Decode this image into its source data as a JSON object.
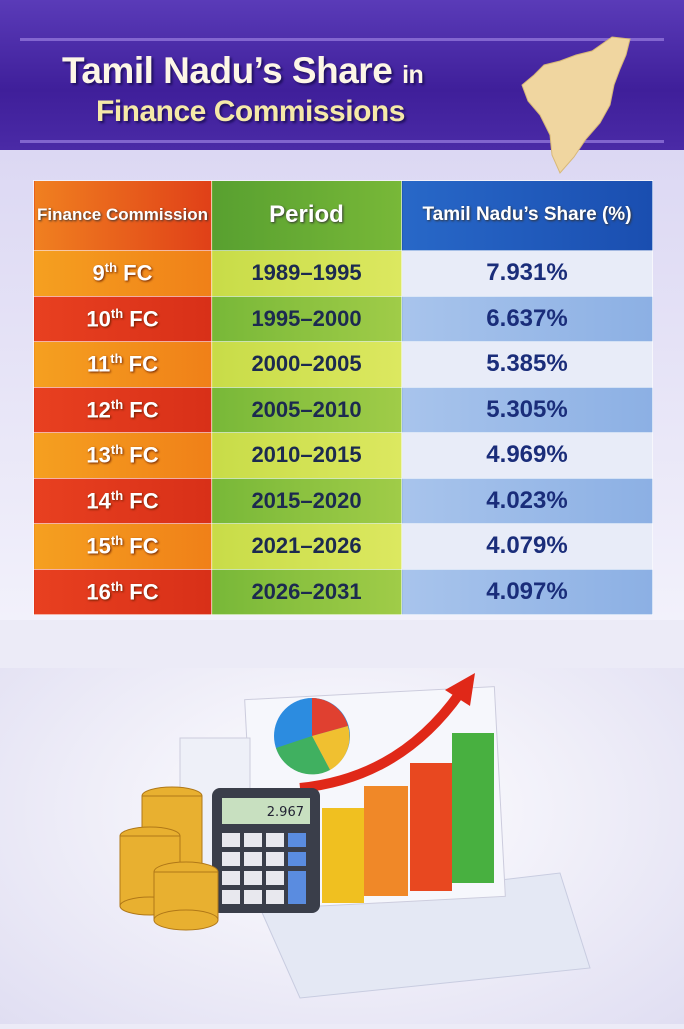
{
  "title": {
    "line1": "Tamil Nadu’s Share",
    "line1_suffix": "in",
    "line2": "Finance Commissions"
  },
  "table": {
    "headers": [
      "Finance Commission",
      "Period",
      "Tamil Nadu’s Share (%)"
    ],
    "rows": [
      {
        "num": "9",
        "sup": "th",
        "fc": "FC",
        "period": "1989–1995",
        "share": "7.931%"
      },
      {
        "num": "10",
        "sup": "th",
        "fc": "FC",
        "period": "1995–2000",
        "share": "6.637%"
      },
      {
        "num": "11",
        "sup": "th",
        "fc": "FC",
        "period": "2000–2005",
        "share": "5.385%"
      },
      {
        "num": "12",
        "sup": "th",
        "fc": "FC",
        "period": "2005–2010",
        "share": "5.305%"
      },
      {
        "num": "13",
        "sup": "th",
        "fc": "FC",
        "period": "2010–2015",
        "share": "4.969%"
      },
      {
        "num": "14",
        "sup": "th",
        "fc": "FC",
        "period": "2015–2020",
        "share": "4.023%"
      },
      {
        "num": "15",
        "sup": "th",
        "fc": "FC",
        "period": "2021–2026",
        "share": "4.079%"
      },
      {
        "num": "16",
        "sup": "th",
        "fc": "FC",
        "period": "2026–2031",
        "share": "4.097%"
      }
    ]
  },
  "illustration": {
    "calculator_display": "2.967"
  }
}
